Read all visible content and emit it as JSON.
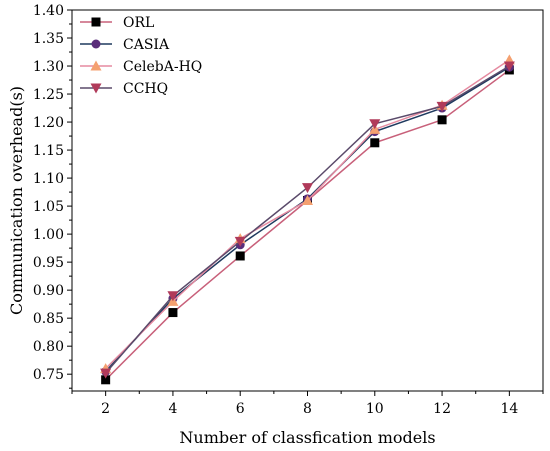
{
  "chart_data": {
    "type": "line",
    "title": "",
    "xlabel": "Number of classfication models",
    "ylabel": "Communication overhead(s)",
    "x": [
      2,
      4,
      6,
      8,
      10,
      12,
      14
    ],
    "xlim": [
      1,
      15
    ],
    "xticks": [
      "2",
      "4",
      "6",
      "8",
      "10",
      "12",
      "14"
    ],
    "ylim": [
      0.72,
      1.4
    ],
    "yticks": [
      "0.75",
      "0.80",
      "0.85",
      "0.90",
      "0.95",
      "1.00",
      "1.05",
      "1.10",
      "1.15",
      "1.20",
      "1.25",
      "1.30",
      "1.35",
      "1.40"
    ],
    "grid": false,
    "legend_position": "top-left",
    "series": [
      {
        "name": "ORL",
        "values": [
          0.74,
          0.86,
          0.961,
          1.06,
          1.163,
          1.204,
          1.293
        ],
        "color": "#c8607a",
        "marker": "square",
        "marker_color": "#000000"
      },
      {
        "name": "CASIA",
        "values": [
          0.755,
          0.885,
          0.981,
          1.063,
          1.183,
          1.225,
          1.298
        ],
        "color": "#1f3a5f",
        "marker": "circle",
        "marker_color": "#5a2d7a"
      },
      {
        "name": "CelebA-HQ",
        "values": [
          0.76,
          0.88,
          0.992,
          1.06,
          1.187,
          1.23,
          1.311
        ],
        "color": "#e58aa0",
        "marker": "triangle-up",
        "marker_color": "#f4a070"
      },
      {
        "name": "CCHQ",
        "values": [
          0.752,
          0.89,
          0.987,
          1.083,
          1.197,
          1.228,
          1.3
        ],
        "color": "#5a4a6a",
        "marker": "triangle-down",
        "marker_color": "#b03a5a"
      }
    ]
  }
}
